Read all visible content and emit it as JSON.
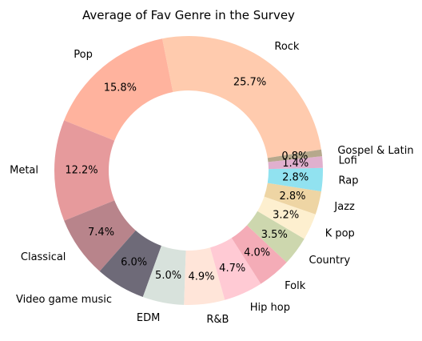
{
  "chart_data": {
    "type": "pie",
    "donut": true,
    "title": "Average of Fav Genre in the Survey",
    "categories": [
      "Rock",
      "Pop",
      "Metal",
      "Classical",
      "Video game music",
      "EDM",
      "R&B",
      "Hip hop",
      "Folk",
      "Country",
      "K pop",
      "Jazz",
      "Rap",
      "Lofi",
      "Gospel & Latin"
    ],
    "values": [
      25.7,
      15.8,
      12.2,
      7.4,
      6.0,
      5.0,
      4.9,
      4.7,
      4.0,
      3.5,
      3.2,
      2.8,
      2.8,
      1.4,
      0.8
    ],
    "value_labels": [
      "25.7%",
      "15.8%",
      "12.2%",
      "7.4%",
      "6.0%",
      "5.0%",
      "4.9%",
      "4.7%",
      "4.0%",
      "3.5%",
      "3.2%",
      "2.8%",
      "2.8%",
      "1.4%",
      "0.8%"
    ],
    "colors": [
      "#FFCBAE",
      "#FFB39E",
      "#E69A9C",
      "#B8848B",
      "#6E6A78",
      "#D8E2DC",
      "#FFE5D9",
      "#FFCAD4",
      "#F4ACB7",
      "#CDD7AE",
      "#FDEFCF",
      "#EED5A4",
      "#91E2F0",
      "#E0B0CE",
      "#B6A88C"
    ],
    "start_angle_deg": 9.0,
    "direction": "counterclockwise",
    "legend": "none"
  }
}
